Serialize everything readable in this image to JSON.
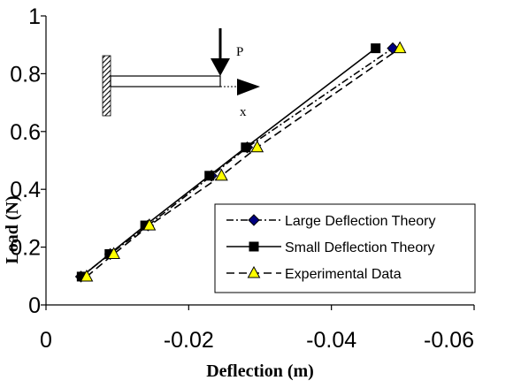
{
  "chart_data": {
    "type": "line",
    "xlabel": "Deflection (m)",
    "ylabel": "Load (N)",
    "xlim": [
      0,
      -0.06
    ],
    "ylim": [
      0,
      1
    ],
    "x_ticks": [
      "0",
      "-0.02",
      "-0.04",
      "-0.06"
    ],
    "x_tick_values": [
      0,
      -0.02,
      -0.04,
      -0.06
    ],
    "y_ticks": [
      "0",
      "0.2",
      "0.4",
      "0.6",
      "0.8",
      "1"
    ],
    "y_tick_values": [
      0,
      0.2,
      0.4,
      0.6,
      0.8,
      1
    ],
    "grid": false,
    "legend_position": "bottom-right",
    "series": [
      {
        "name": "Large Deflection Theory",
        "line_style": "dash-dot",
        "marker": "diamond",
        "marker_color": "#000080",
        "x": [
          -0.0049,
          -0.009,
          -0.0143,
          -0.0232,
          -0.0282,
          -0.0486
        ],
        "y": [
          0.098,
          0.176,
          0.275,
          0.447,
          0.545,
          0.888
        ]
      },
      {
        "name": "Small Deflection Theory",
        "line_style": "solid",
        "marker": "square",
        "marker_color": "#000000",
        "x": [
          -0.005,
          -0.0089,
          -0.0139,
          -0.0229,
          -0.028,
          -0.0462
        ],
        "y": [
          0.098,
          0.176,
          0.275,
          0.447,
          0.545,
          0.888
        ]
      },
      {
        "name": "Experimental Data",
        "line_style": "dashed",
        "marker": "triangle",
        "marker_color": "#ffff00",
        "x": [
          -0.0057,
          -0.0095,
          -0.0145,
          -0.0246,
          -0.0296,
          -0.0496
        ],
        "y": [
          0.098,
          0.176,
          0.275,
          0.447,
          0.545,
          0.888
        ]
      }
    ],
    "inset": {
      "force_label": "P",
      "axis_label": "x"
    }
  }
}
